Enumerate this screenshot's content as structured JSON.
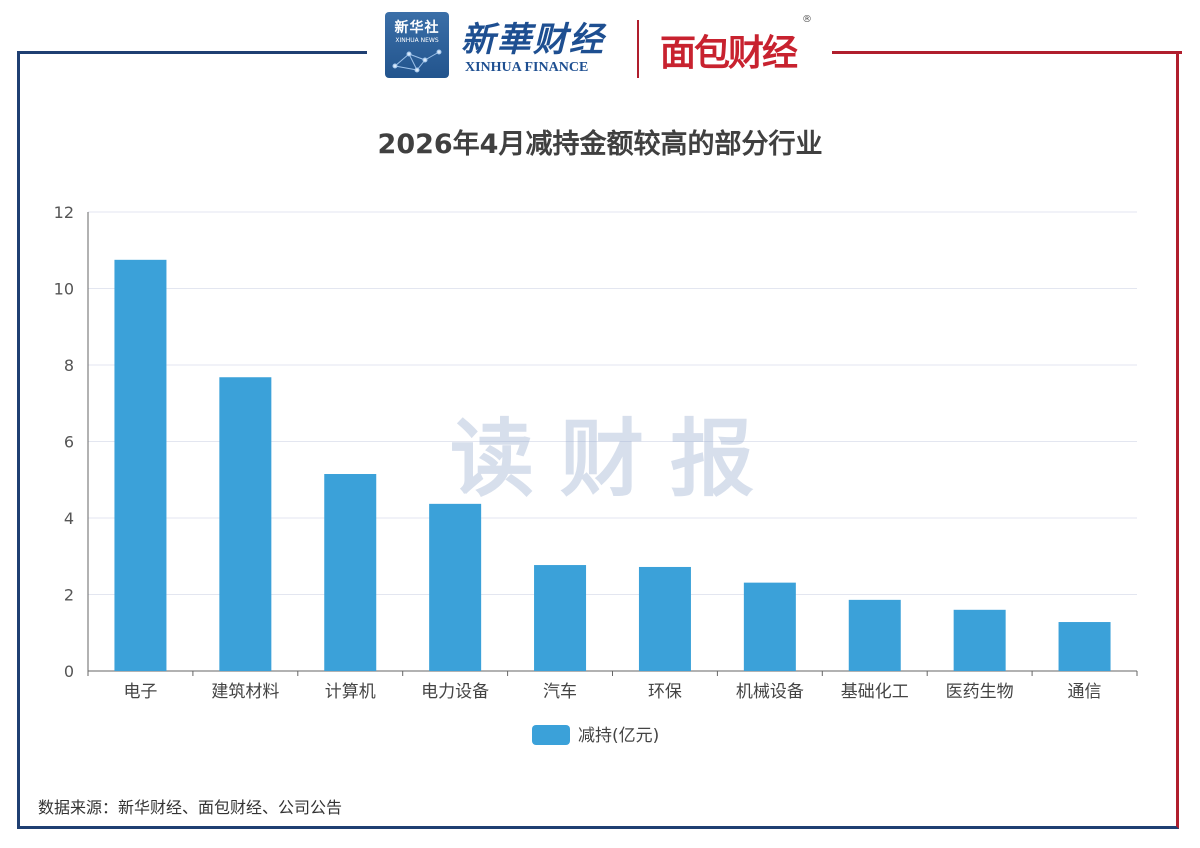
{
  "header": {
    "xinhua_badge_cn": "新华社",
    "xinhua_badge_en": "XINHUA NEWS",
    "xinhua_finance_cn": "新華财经",
    "xinhua_finance_en": "XINHUA FINANCE",
    "mianbao_logo": "面包财经",
    "registered_mark": "®"
  },
  "watermark": "读财报",
  "source_note": "数据来源：新华财经、面包财经、公司公告",
  "colors": {
    "bar": "#3ba1d9",
    "frame_left": "#1f3f72",
    "frame_right": "#b01e2d",
    "grid": "#e3e6f0"
  },
  "chart_data": {
    "type": "bar",
    "title": "2026年4月减持金额较高的部分行业",
    "categories": [
      "电子",
      "建筑材料",
      "计算机",
      "电力设备",
      "汽车",
      "环保",
      "机械设备",
      "基础化工",
      "医药生物",
      "通信"
    ],
    "series": [
      {
        "name": "减持(亿元)",
        "values": [
          10.75,
          7.68,
          5.15,
          4.37,
          2.77,
          2.72,
          2.31,
          1.86,
          1.6,
          1.28
        ]
      }
    ],
    "ylim": [
      0,
      12
    ],
    "yticks": [
      0,
      2,
      4,
      6,
      8,
      10,
      12
    ],
    "grid": true,
    "legend": "bottom-center"
  }
}
